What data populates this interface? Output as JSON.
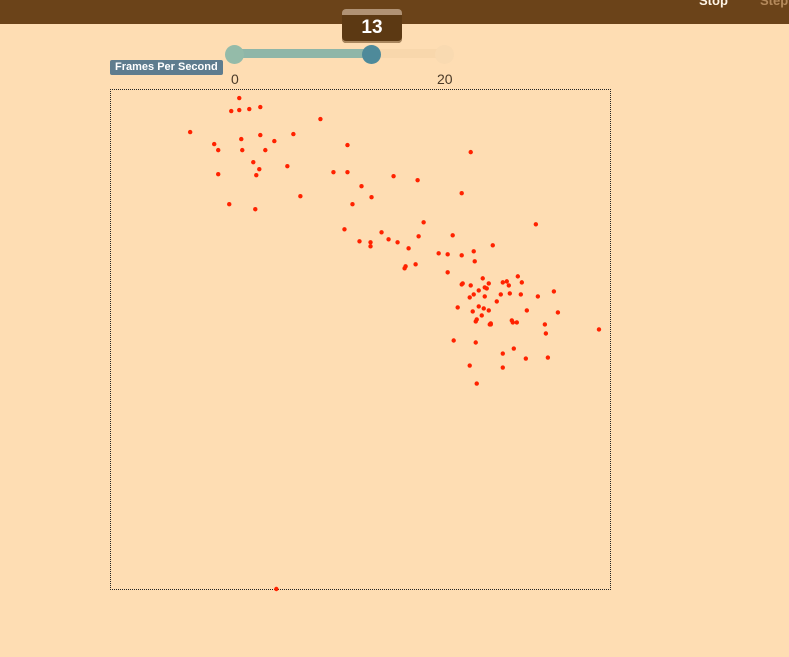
{
  "toolbar": {
    "stop_label": "Stop",
    "step_label": "Step"
  },
  "slider": {
    "label": "Frames Per Second",
    "min": 0,
    "max": 20,
    "value": 13,
    "value_text": "13",
    "min_label": "0",
    "max_label": "20"
  },
  "colors": {
    "topbar": "#6B4319",
    "background": "#FEDDB3",
    "point": "#FF2200",
    "slider_fill": "#8FB6A8",
    "slider_handle": "#4E8A9A",
    "badge": "#5E7C8E"
  },
  "chart_data": {
    "type": "scatter",
    "xlim": [
      0,
      500
    ],
    "ylim": [
      0,
      500
    ],
    "grid": false,
    "legend": "none",
    "points": [
      [
        129,
        9
      ],
      [
        139,
        20
      ],
      [
        150,
        18
      ],
      [
        121,
        22
      ],
      [
        129,
        21
      ],
      [
        80,
        43
      ],
      [
        104,
        55
      ],
      [
        131,
        50
      ],
      [
        150,
        46
      ],
      [
        164,
        52
      ],
      [
        183,
        45
      ],
      [
        210,
        30
      ],
      [
        237,
        56
      ],
      [
        108,
        61
      ],
      [
        132,
        61
      ],
      [
        155,
        61
      ],
      [
        143,
        73
      ],
      [
        149,
        80
      ],
      [
        177,
        77
      ],
      [
        223,
        83
      ],
      [
        237,
        83
      ],
      [
        283,
        87
      ],
      [
        307,
        91
      ],
      [
        108,
        85
      ],
      [
        146,
        86
      ],
      [
        360,
        63
      ],
      [
        251,
        97
      ],
      [
        261,
        108
      ],
      [
        351,
        104
      ],
      [
        190,
        107
      ],
      [
        119,
        115
      ],
      [
        145,
        120
      ],
      [
        242,
        115
      ],
      [
        313,
        133
      ],
      [
        425,
        135
      ],
      [
        234,
        140
      ],
      [
        271,
        143
      ],
      [
        249,
        152
      ],
      [
        260,
        153
      ],
      [
        278,
        150
      ],
      [
        260,
        157
      ],
      [
        287,
        153
      ],
      [
        308,
        147
      ],
      [
        298,
        159
      ],
      [
        342,
        146
      ],
      [
        382,
        156
      ],
      [
        328,
        164
      ],
      [
        351,
        166
      ],
      [
        337,
        165
      ],
      [
        363,
        162
      ],
      [
        364,
        172
      ],
      [
        305,
        175
      ],
      [
        295,
        177
      ],
      [
        294,
        179
      ],
      [
        337,
        183
      ],
      [
        407,
        187
      ],
      [
        351,
        195
      ],
      [
        352,
        194
      ],
      [
        372,
        189
      ],
      [
        378,
        194
      ],
      [
        392,
        193
      ],
      [
        396,
        192
      ],
      [
        360,
        196
      ],
      [
        374,
        198
      ],
      [
        368,
        201
      ],
      [
        376,
        199
      ],
      [
        390,
        205
      ],
      [
        398,
        196
      ],
      [
        411,
        193
      ],
      [
        399,
        204
      ],
      [
        410,
        205
      ],
      [
        443,
        202
      ],
      [
        427,
        207
      ],
      [
        359,
        208
      ],
      [
        363,
        205
      ],
      [
        374,
        207
      ],
      [
        386,
        212
      ],
      [
        373,
        219
      ],
      [
        371,
        226
      ],
      [
        347,
        218
      ],
      [
        368,
        217
      ],
      [
        362,
        222
      ],
      [
        366,
        230
      ],
      [
        378,
        221
      ],
      [
        380,
        234
      ],
      [
        365,
        232
      ],
      [
        401,
        231
      ],
      [
        416,
        221
      ],
      [
        447,
        223
      ],
      [
        434,
        235
      ],
      [
        402,
        233
      ],
      [
        406,
        233
      ],
      [
        379,
        235
      ],
      [
        380,
        235
      ],
      [
        488,
        240
      ],
      [
        435,
        244
      ],
      [
        343,
        251
      ],
      [
        365,
        253
      ],
      [
        403,
        259
      ],
      [
        392,
        264
      ],
      [
        415,
        269
      ],
      [
        437,
        268
      ],
      [
        359,
        276
      ],
      [
        392,
        278
      ],
      [
        366,
        294
      ],
      [
        166,
        499
      ]
    ]
  }
}
